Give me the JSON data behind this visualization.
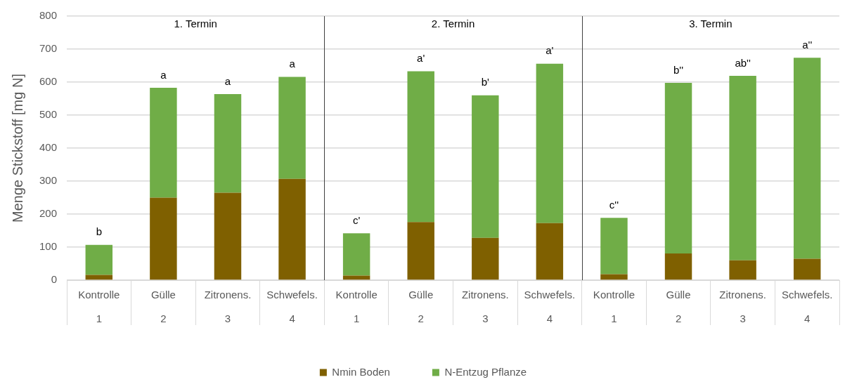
{
  "chart_data": {
    "type": "bar",
    "stacked": true,
    "ylabel": "Menge Stickstoff [mg N]",
    "categories": [
      "Kontrolle\n1",
      "Gülle\n2",
      "Zitronens.\n3",
      "Schwefels.\n4",
      "Kontrolle\n1",
      "Gülle\n2",
      "Zitronens.\n3",
      "Schwefels.\n4",
      "Kontrolle\n1",
      "Gülle\n2",
      "Zitronens.\n3",
      "Schwefels.\n4"
    ],
    "series": [
      {
        "name": "Nmin Boden",
        "color": "#7f6000",
        "values": [
          16,
          250,
          265,
          307,
          14,
          176,
          128,
          173,
          18,
          81,
          60,
          65
        ]
      },
      {
        "name": "N-Entzug Pflanze",
        "color": "#70ad47",
        "values": [
          91,
          333,
          299,
          309,
          128,
          457,
          432,
          483,
          171,
          517,
          559,
          609
        ],
        "value_labels": [
          "b",
          "a",
          "a",
          "a",
          "c'",
          "a'",
          "b'",
          "a'",
          "c''",
          "b''",
          "ab''",
          "a''"
        ]
      }
    ],
    "ylim": [
      0,
      800
    ],
    "yticks": [
      0,
      100,
      200,
      300,
      400,
      500,
      600,
      700,
      800
    ],
    "grid": "y",
    "legend": "bottom",
    "annotations": [
      "1. Termin",
      "2. Termin",
      "3. Termin"
    ]
  }
}
